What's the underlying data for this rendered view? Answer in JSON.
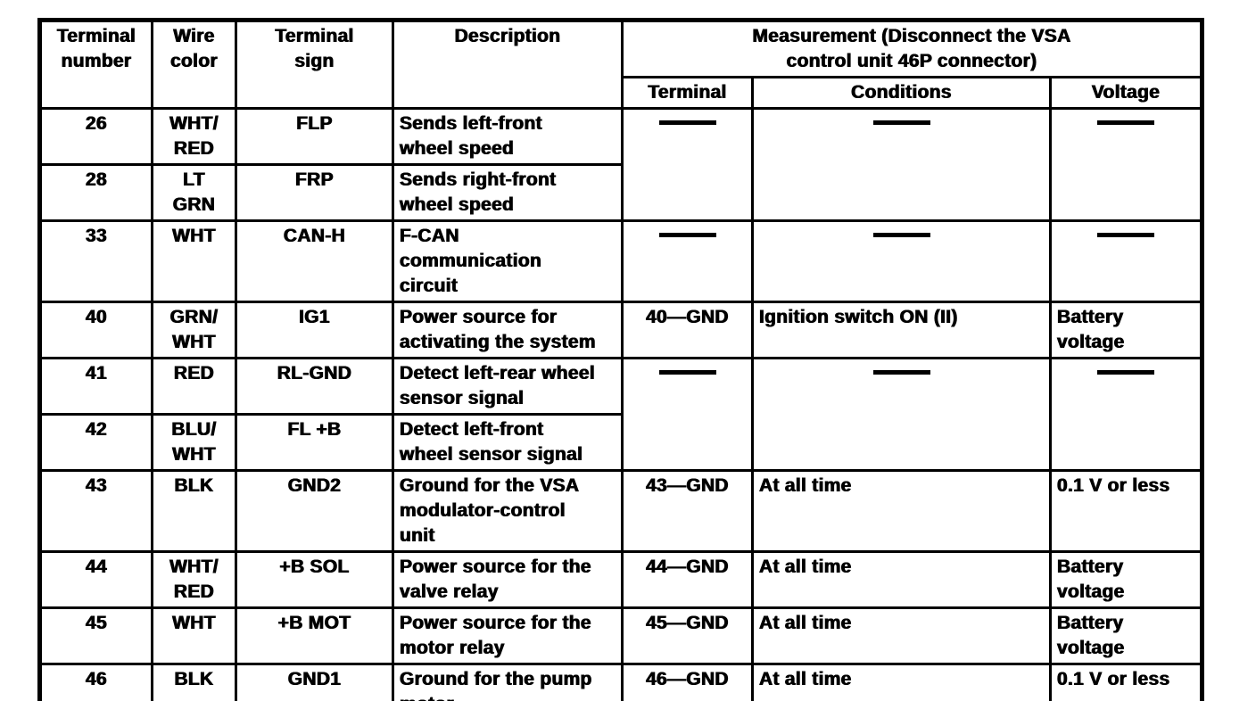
{
  "document": {
    "type": "scanned-service-manual-table",
    "background_color": "#ffffff",
    "ink_color": "#000000",
    "empty_cell_symbol": "—"
  },
  "table": {
    "header": {
      "terminal_number": "Terminal\nnumber",
      "wire_color": "Wire\ncolor",
      "terminal_sign": "Terminal\nsign",
      "description": "Description",
      "measurement_group": "Measurement (Disconnect the VSA\ncontrol unit 46P connector)",
      "measurement_terminal": "Terminal",
      "measurement_conditions": "Conditions",
      "measurement_voltage": "Voltage"
    },
    "rows": [
      {
        "terminal_number": "26",
        "wire_color": "WHT/\nRED",
        "terminal_sign": "FLP",
        "description": "Sends left-front\nwheel speed",
        "measurement": {
          "terminal": "—",
          "conditions": "—",
          "voltage": "—"
        }
      },
      {
        "terminal_number": "28",
        "wire_color": "LT\nGRN",
        "terminal_sign": "FRP",
        "description": "Sends right-front\nwheel speed"
      },
      {
        "terminal_number": "33",
        "wire_color": "WHT",
        "terminal_sign": "CAN-H",
        "description": "F-CAN\ncommunication\ncircuit",
        "measurement": {
          "terminal": "—",
          "conditions": "—",
          "voltage": "—"
        }
      },
      {
        "terminal_number": "40",
        "wire_color": "GRN/\nWHT",
        "terminal_sign": "IG1",
        "description": "Power source for\nactivating the system",
        "measurement": {
          "terminal": "40—GND",
          "conditions": "Ignition switch ON (II)",
          "voltage": "Battery\nvoltage"
        }
      },
      {
        "terminal_number": "41",
        "wire_color": "RED",
        "terminal_sign": "RL-GND",
        "description": "Detect left-rear wheel\nsensor signal",
        "measurement": {
          "terminal": "—",
          "conditions": "—",
          "voltage": "—"
        }
      },
      {
        "terminal_number": "42",
        "wire_color": "BLU/\nWHT",
        "terminal_sign": "FL +B",
        "description": "Detect left-front\nwheel sensor signal"
      },
      {
        "terminal_number": "43",
        "wire_color": "BLK",
        "terminal_sign": "GND2",
        "description": "Ground for the VSA\nmodulator-control\nunit",
        "measurement": {
          "terminal": "43—GND",
          "conditions": "At all time",
          "voltage": "0.1 V or less"
        }
      },
      {
        "terminal_number": "44",
        "wire_color": "WHT/\nRED",
        "terminal_sign": "+B SOL",
        "description": "Power source for the\nvalve relay",
        "measurement": {
          "terminal": "44—GND",
          "conditions": "At all time",
          "voltage": "Battery\nvoltage"
        }
      },
      {
        "terminal_number": "45",
        "wire_color": "WHT",
        "terminal_sign": "+B MOT",
        "description": "Power source for the\nmotor relay",
        "measurement": {
          "terminal": "45—GND",
          "conditions": "At all time",
          "voltage": "Battery\nvoltage"
        }
      },
      {
        "terminal_number": "46",
        "wire_color": "BLK",
        "terminal_sign": "GND1",
        "description": "Ground for the pump\nmotor",
        "measurement": {
          "terminal": "46—GND",
          "conditions": "At all time",
          "voltage": "0.1 V or less"
        }
      }
    ]
  }
}
